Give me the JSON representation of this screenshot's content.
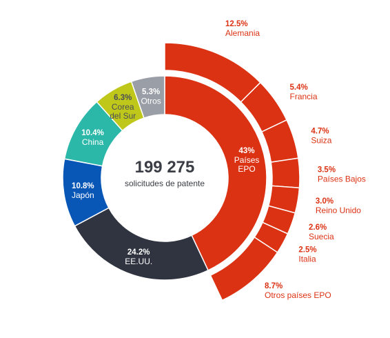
{
  "chart_data": {
    "type": "pie",
    "center": {
      "total": "199 275",
      "subtitle": "solicitudes de patente"
    },
    "inner_ring": [
      {
        "pct_label": "43%",
        "name": "Países\nEPO",
        "value": 43.0,
        "color": "#dc3214",
        "text_color": "#ffffff"
      },
      {
        "pct_label": "24.2%",
        "name": "EE.UU.",
        "value": 24.2,
        "color": "#2f3440",
        "text_color": "#ffffff"
      },
      {
        "pct_label": "10.8%",
        "name": "Japón",
        "value": 10.8,
        "color": "#0857b6",
        "text_color": "#ffffff"
      },
      {
        "pct_label": "10.4%",
        "name": "China",
        "value": 10.4,
        "color": "#2bb8a8",
        "text_color": "#ffffff"
      },
      {
        "pct_label": "6.3%",
        "name": "Corea\ndel Sur",
        "value": 6.3,
        "color": "#bfc81a",
        "text_color": "#4a4d55"
      },
      {
        "pct_label": "5.3%",
        "name": "Otros",
        "value": 5.3,
        "color": "#9a9ea6",
        "text_color": "#ffffff"
      }
    ],
    "outer_ring": [
      {
        "pct_label": "12.5%",
        "name": "Alemania",
        "value": 12.5
      },
      {
        "pct_label": "5.4%",
        "name": "Francia",
        "value": 5.4
      },
      {
        "pct_label": "4.7%",
        "name": "Suiza",
        "value": 4.7
      },
      {
        "pct_label": "3.5%",
        "name": "Países Bajos",
        "value": 3.5
      },
      {
        "pct_label": "3.0%",
        "name": "Reino Unido",
        "value": 3.0
      },
      {
        "pct_label": "2.6%",
        "name": "Suecia",
        "value": 2.6
      },
      {
        "pct_label": "2.5%",
        "name": "Italia",
        "value": 2.5
      },
      {
        "pct_label": "8.7%",
        "name": "Otros países EPO",
        "value": 8.7
      }
    ],
    "outer_ring_color": "#dc3214",
    "outer_label_color": "#dc3214"
  }
}
